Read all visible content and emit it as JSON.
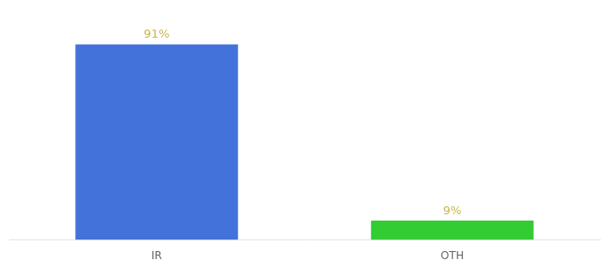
{
  "chart_data": {
    "type": "bar",
    "categories": [
      "IR",
      "OTH"
    ],
    "values": [
      91,
      9
    ],
    "value_labels": [
      "91%",
      "9%"
    ],
    "colors": [
      "#4472db",
      "#33cc33"
    ],
    "ylim": [
      0,
      100
    ],
    "grid": false,
    "data_labels": true,
    "tick_labels": "x"
  }
}
